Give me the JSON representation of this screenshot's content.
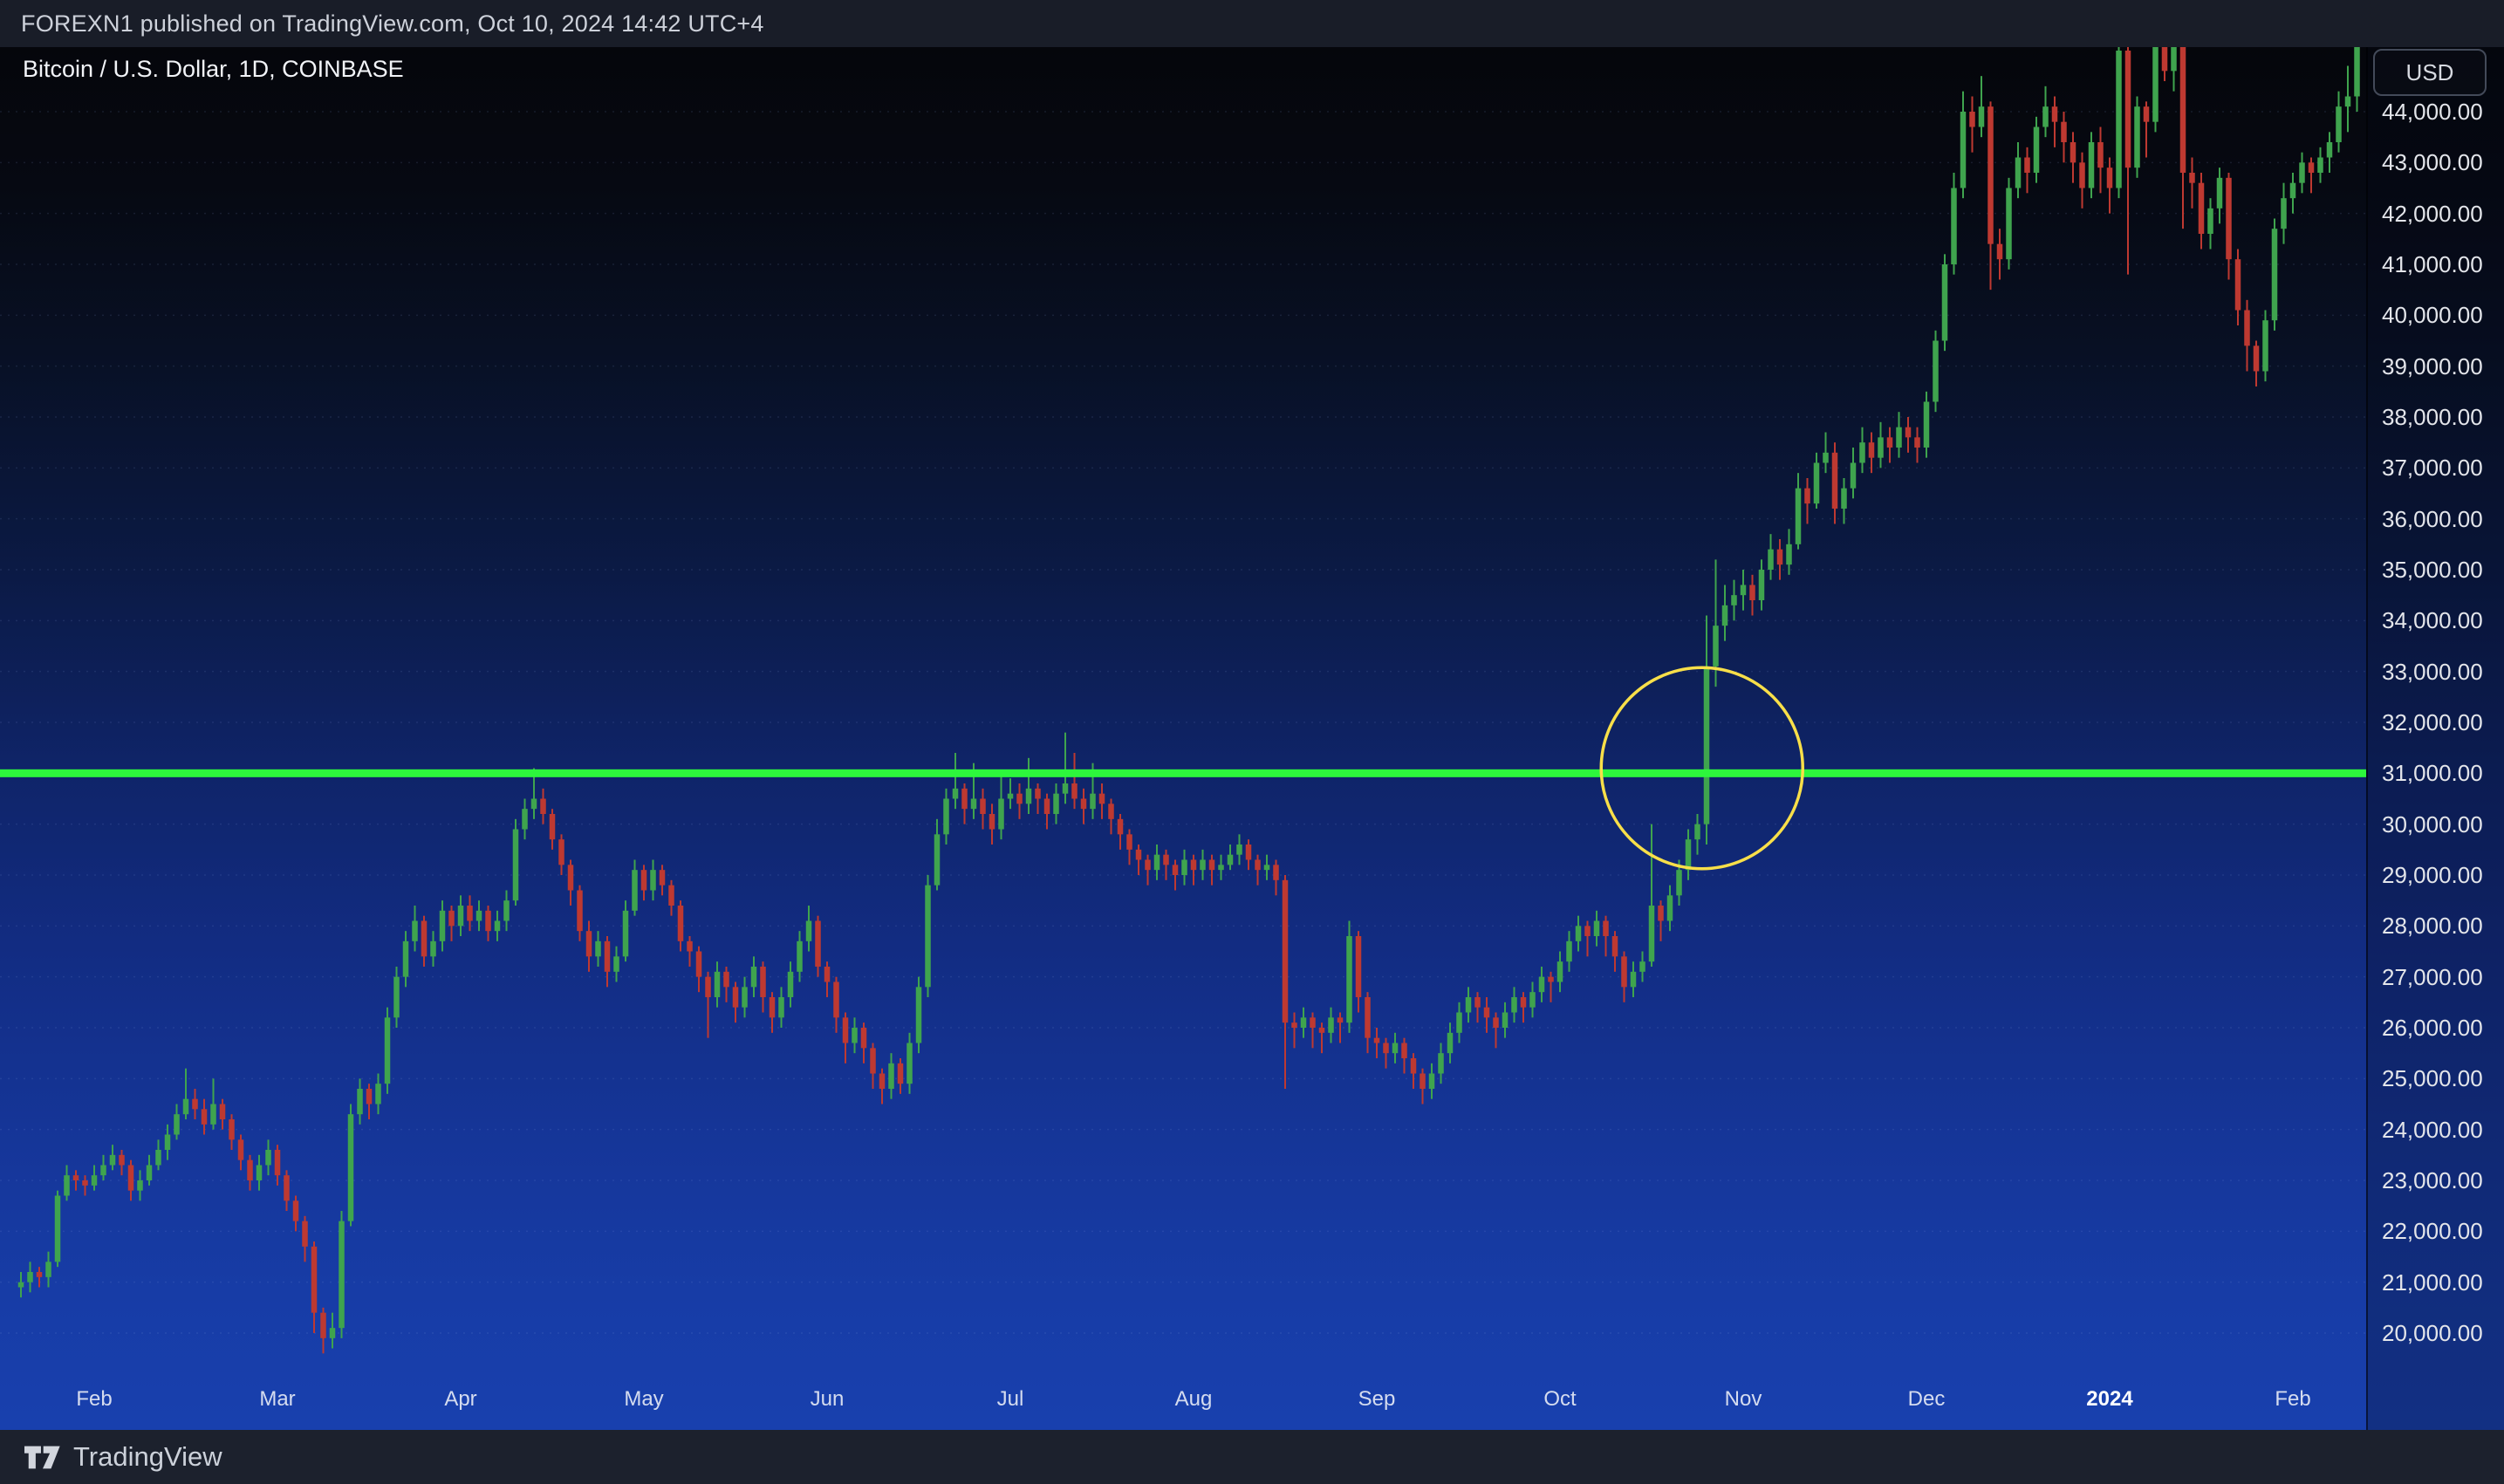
{
  "header": {
    "text": "FOREXN1 published on TradingView.com, Oct 10, 2024 14:42 UTC+4"
  },
  "chart": {
    "title": "Bitcoin / U.S. Dollar, 1D, COINBASE",
    "currency_button": "USD"
  },
  "footer": {
    "brand": "TradingView"
  },
  "colors": {
    "candle_up": "#3fa44e",
    "candle_down": "#be3931",
    "horizontal_line": "#2df73c",
    "highlight_circle": "#f8df49",
    "grid": "rgba(150,170,230,0.13)",
    "axis_text": "#e3e5ea"
  },
  "chart_data": {
    "type": "candlestick",
    "title": "Bitcoin / U.S. Dollar",
    "timeframe": "1D",
    "exchange": "COINBASE",
    "currency": "USD",
    "legend_position": "top-left",
    "grid": "faint-dotted-horizontal",
    "y_axis": {
      "ticks": [
        "44,000.00",
        "43,000.00",
        "42,000.00",
        "41,000.00",
        "40,000.00",
        "39,000.00",
        "38,000.00",
        "37,000.00",
        "36,000.00",
        "35,000.00",
        "34,000.00",
        "33,000.00",
        "32,000.00",
        "31,000.00",
        "30,000.00",
        "29,000.00",
        "28,000.00",
        "27,000.00",
        "26,000.00",
        "25,000.00",
        "24,000.00",
        "23,000.00",
        "22,000.00",
        "21,000.00",
        "20,000.00"
      ],
      "visible_range": [
        19600,
        45250
      ]
    },
    "x_axis": {
      "labels": [
        {
          "label": "Feb",
          "candle": 8
        },
        {
          "label": "Mar",
          "candle": 28
        },
        {
          "label": "Apr",
          "candle": 48
        },
        {
          "label": "May",
          "candle": 68
        },
        {
          "label": "Jun",
          "candle": 88
        },
        {
          "label": "Jul",
          "candle": 108
        },
        {
          "label": "Aug",
          "candle": 128
        },
        {
          "label": "Sep",
          "candle": 148
        },
        {
          "label": "Oct",
          "candle": 168
        },
        {
          "label": "Nov",
          "candle": 188
        },
        {
          "label": "Dec",
          "candle": 208
        },
        {
          "label": "2024",
          "candle": 228,
          "emphasis": true
        },
        {
          "label": "Feb",
          "candle": 248
        }
      ],
      "span": "mid-January 2023 to early-February 2024, daily candles"
    },
    "price_unit": 100,
    "first_open": 209,
    "candles_format": "[high, low, close] in units of price_unit; open = previous close",
    "candles": [
      [
        212,
        207,
        210
      ],
      [
        214,
        208,
        212
      ],
      [
        213,
        209,
        211
      ],
      [
        216,
        209,
        214
      ],
      [
        228,
        213,
        227
      ],
      [
        233,
        226,
        231
      ],
      [
        232,
        228,
        230
      ],
      [
        231,
        227,
        229
      ],
      [
        233,
        228,
        231
      ],
      [
        235,
        230,
        233
      ],
      [
        237,
        232,
        235
      ],
      [
        236,
        231,
        233
      ],
      [
        234,
        226,
        228
      ],
      [
        232,
        226,
        230
      ],
      [
        235,
        229,
        233
      ],
      [
        238,
        232,
        236
      ],
      [
        241,
        234,
        239
      ],
      [
        245,
        238,
        243
      ],
      [
        252,
        242,
        246
      ],
      [
        248,
        242,
        244
      ],
      [
        246,
        239,
        241
      ],
      [
        250,
        240,
        245
      ],
      [
        246,
        240,
        242
      ],
      [
        243,
        236,
        238
      ],
      [
        239,
        232,
        234
      ],
      [
        235,
        228,
        230
      ],
      [
        235,
        228,
        233
      ],
      [
        238,
        231,
        236
      ],
      [
        237,
        229,
        231
      ],
      [
        232,
        224,
        226
      ],
      [
        227,
        220,
        222
      ],
      [
        223,
        214,
        217
      ],
      [
        218,
        200,
        204
      ],
      [
        205,
        196,
        199
      ],
      [
        204,
        197,
        201
      ],
      [
        224,
        199,
        222
      ],
      [
        245,
        221,
        243
      ],
      [
        250,
        241,
        248
      ],
      [
        249,
        242,
        245
      ],
      [
        251,
        243,
        249
      ],
      [
        264,
        247,
        262
      ],
      [
        272,
        260,
        270
      ],
      [
        279,
        268,
        277
      ],
      [
        284,
        275,
        281
      ],
      [
        282,
        272,
        274
      ],
      [
        279,
        272,
        277
      ],
      [
        285,
        275,
        283
      ],
      [
        284,
        277,
        280
      ],
      [
        286,
        278,
        284
      ],
      [
        286,
        279,
        281
      ],
      [
        285,
        279,
        283
      ],
      [
        284,
        277,
        279
      ],
      [
        283,
        277,
        281
      ],
      [
        287,
        279,
        285
      ],
      [
        301,
        284,
        299
      ],
      [
        305,
        297,
        303
      ],
      [
        311,
        301,
        305
      ],
      [
        307,
        300,
        302
      ],
      [
        303,
        295,
        297
      ],
      [
        298,
        290,
        292
      ],
      [
        293,
        284,
        287
      ],
      [
        288,
        277,
        279
      ],
      [
        281,
        271,
        274
      ],
      [
        279,
        272,
        277
      ],
      [
        278,
        268,
        271
      ],
      [
        276,
        269,
        274
      ],
      [
        285,
        273,
        283
      ],
      [
        293,
        282,
        291
      ],
      [
        292,
        285,
        287
      ],
      [
        293,
        285,
        291
      ],
      [
        292,
        286,
        288
      ],
      [
        289,
        282,
        284
      ],
      [
        285,
        275,
        277
      ],
      [
        278,
        272,
        275
      ],
      [
        276,
        267,
        270
      ],
      [
        271,
        258,
        266
      ],
      [
        273,
        264,
        271
      ],
      [
        272,
        265,
        268
      ],
      [
        269,
        261,
        264
      ],
      [
        270,
        262,
        268
      ],
      [
        274,
        266,
        272
      ],
      [
        273,
        263,
        266
      ],
      [
        267,
        259,
        262
      ],
      [
        268,
        260,
        266
      ],
      [
        273,
        264,
        271
      ],
      [
        279,
        269,
        277
      ],
      [
        284,
        275,
        281
      ],
      [
        282,
        270,
        272
      ],
      [
        273,
        266,
        269
      ],
      [
        270,
        259,
        262
      ],
      [
        263,
        253,
        257
      ],
      [
        262,
        255,
        260
      ],
      [
        261,
        253,
        256
      ],
      [
        257,
        248,
        251
      ],
      [
        252,
        245,
        248
      ],
      [
        255,
        246,
        253
      ],
      [
        254,
        247,
        249
      ],
      [
        259,
        247,
        257
      ],
      [
        270,
        255,
        268
      ],
      [
        290,
        266,
        288
      ],
      [
        301,
        287,
        298
      ],
      [
        307,
        296,
        305
      ],
      [
        314,
        303,
        307
      ],
      [
        308,
        300,
        303
      ],
      [
        312,
        301,
        305
      ],
      [
        307,
        299,
        302
      ],
      [
        304,
        296,
        299
      ],
      [
        310,
        297,
        305
      ],
      [
        309,
        303,
        306
      ],
      [
        308,
        301,
        304
      ],
      [
        313,
        302,
        307
      ],
      [
        308,
        302,
        305
      ],
      [
        306,
        299,
        302
      ],
      [
        308,
        300,
        306
      ],
      [
        318,
        304,
        308
      ],
      [
        314,
        303,
        305
      ],
      [
        307,
        300,
        303
      ],
      [
        312,
        301,
        306
      ],
      [
        308,
        301,
        304
      ],
      [
        305,
        298,
        301
      ],
      [
        302,
        295,
        298
      ],
      [
        299,
        292,
        295
      ],
      [
        296,
        290,
        293
      ],
      [
        294,
        288,
        291
      ],
      [
        296,
        289,
        294
      ],
      [
        295,
        289,
        292
      ],
      [
        293,
        287,
        290
      ],
      [
        295,
        288,
        293
      ],
      [
        294,
        288,
        291
      ],
      [
        295,
        289,
        293
      ],
      [
        294,
        288,
        291
      ],
      [
        294,
        289,
        292
      ],
      [
        296,
        291,
        294
      ],
      [
        298,
        292,
        296
      ],
      [
        297,
        291,
        293
      ],
      [
        294,
        288,
        291
      ],
      [
        294,
        289,
        292
      ],
      [
        293,
        286,
        289
      ],
      [
        290,
        248,
        261
      ],
      [
        263,
        256,
        260
      ],
      [
        264,
        258,
        262
      ],
      [
        263,
        256,
        260
      ],
      [
        261,
        255,
        259
      ],
      [
        264,
        257,
        262
      ],
      [
        263,
        257,
        261
      ],
      [
        281,
        259,
        278
      ],
      [
        279,
        263,
        266
      ],
      [
        267,
        255,
        258
      ],
      [
        260,
        254,
        257
      ],
      [
        258,
        252,
        255
      ],
      [
        259,
        253,
        257
      ],
      [
        258,
        251,
        254
      ],
      [
        255,
        248,
        251
      ],
      [
        252,
        245,
        248
      ],
      [
        253,
        246,
        251
      ],
      [
        257,
        249,
        255
      ],
      [
        261,
        253,
        259
      ],
      [
        265,
        257,
        263
      ],
      [
        268,
        261,
        266
      ],
      [
        267,
        261,
        264
      ],
      [
        266,
        259,
        262
      ],
      [
        263,
        256,
        260
      ],
      [
        265,
        258,
        263
      ],
      [
        268,
        261,
        266
      ],
      [
        267,
        261,
        264
      ],
      [
        269,
        262,
        267
      ],
      [
        272,
        265,
        270
      ],
      [
        271,
        265,
        269
      ],
      [
        275,
        267,
        273
      ],
      [
        279,
        271,
        277
      ],
      [
        282,
        275,
        280
      ],
      [
        281,
        274,
        278
      ],
      [
        283,
        276,
        281
      ],
      [
        282,
        274,
        278
      ],
      [
        279,
        271,
        274
      ],
      [
        275,
        265,
        268
      ],
      [
        273,
        266,
        271
      ],
      [
        275,
        269,
        273
      ],
      [
        300,
        272,
        284
      ],
      [
        285,
        277,
        281
      ],
      [
        288,
        279,
        286
      ],
      [
        293,
        284,
        291
      ],
      [
        299,
        289,
        297
      ],
      [
        302,
        294,
        300
      ],
      [
        341,
        296,
        331
      ],
      [
        352,
        327,
        339
      ],
      [
        347,
        336,
        343
      ],
      [
        348,
        340,
        345
      ],
      [
        350,
        342,
        347
      ],
      [
        349,
        341,
        344
      ],
      [
        352,
        342,
        350
      ],
      [
        357,
        348,
        354
      ],
      [
        356,
        348,
        351
      ],
      [
        358,
        349,
        355
      ],
      [
        369,
        354,
        366
      ],
      [
        368,
        359,
        363
      ],
      [
        373,
        362,
        371
      ],
      [
        377,
        369,
        373
      ],
      [
        375,
        359,
        362
      ],
      [
        368,
        359,
        366
      ],
      [
        374,
        364,
        371
      ],
      [
        378,
        369,
        375
      ],
      [
        377,
        369,
        372
      ],
      [
        379,
        370,
        376
      ],
      [
        378,
        371,
        374
      ],
      [
        381,
        372,
        378
      ],
      [
        380,
        373,
        376
      ],
      [
        378,
        371,
        374
      ],
      [
        385,
        372,
        383
      ],
      [
        397,
        381,
        395
      ],
      [
        412,
        393,
        410
      ],
      [
        428,
        408,
        425
      ],
      [
        444,
        423,
        440
      ],
      [
        443,
        432,
        437
      ],
      [
        447,
        435,
        441
      ],
      [
        442,
        405,
        414
      ],
      [
        417,
        407,
        411
      ],
      [
        427,
        409,
        425
      ],
      [
        434,
        423,
        431
      ],
      [
        433,
        424,
        428
      ],
      [
        439,
        426,
        437
      ],
      [
        445,
        435,
        441
      ],
      [
        443,
        433,
        438
      ],
      [
        440,
        430,
        434
      ],
      [
        436,
        426,
        430
      ],
      [
        432,
        421,
        425
      ],
      [
        436,
        423,
        434
      ],
      [
        437,
        424,
        429
      ],
      [
        431,
        420,
        425
      ],
      [
        458,
        423,
        452
      ],
      [
        454,
        408,
        429
      ],
      [
        443,
        427,
        441
      ],
      [
        442,
        431,
        438
      ],
      [
        465,
        436,
        458
      ],
      [
        460,
        446,
        448
      ],
      [
        480,
        444,
        464
      ],
      [
        466,
        417,
        428
      ],
      [
        431,
        421,
        426
      ],
      [
        428,
        413,
        416
      ],
      [
        423,
        413,
        421
      ],
      [
        429,
        418,
        427
      ],
      [
        428,
        407,
        411
      ],
      [
        413,
        398,
        401
      ],
      [
        403,
        389,
        394
      ],
      [
        395,
        386,
        389
      ],
      [
        401,
        387,
        399
      ],
      [
        419,
        397,
        417
      ],
      [
        426,
        414,
        423
      ],
      [
        428,
        420,
        426
      ],
      [
        432,
        424,
        430
      ],
      [
        431,
        424,
        428
      ],
      [
        433,
        426,
        431
      ],
      [
        436,
        428,
        434
      ],
      [
        444,
        432,
        441
      ],
      [
        449,
        436,
        443
      ],
      [
        460,
        440,
        454
      ]
    ],
    "horizontal_line": {
      "price": 31000,
      "style": "solid",
      "thickness": 9
    },
    "highlight_circle": {
      "candle_index": 183.5,
      "price": 31100,
      "candle_radius": 11,
      "price_radius": 1975
    }
  }
}
